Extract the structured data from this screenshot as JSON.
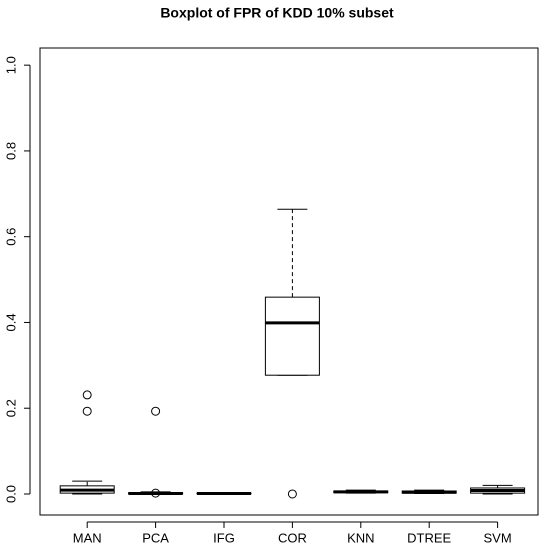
{
  "chart_data": {
    "type": "boxplot",
    "title": "Boxplot of FPR of KDD 10% subset",
    "categories": [
      "MAN",
      "PCA",
      "IFG",
      "COR",
      "KNN",
      "DTREE",
      "SVM"
    ],
    "boxes": [
      {
        "min": 0.0,
        "q1": 0.002,
        "median": 0.009,
        "q3": 0.019,
        "max": 0.03,
        "outliers": [
          0.231,
          0.193
        ]
      },
      {
        "min": 0.0,
        "q1": 0.0,
        "median": 0.001,
        "q3": 0.003,
        "max": 0.005,
        "outliers": [
          0.193,
          0.002
        ]
      },
      {
        "min": 0.0,
        "q1": 0.0005,
        "median": 0.001,
        "q3": 0.002,
        "max": 0.003,
        "outliers": []
      },
      {
        "min": 0.277,
        "q1": 0.277,
        "median": 0.399,
        "q3": 0.459,
        "max": 0.664,
        "outliers": [
          0.0
        ]
      },
      {
        "min": 0.002,
        "q1": 0.003,
        "median": 0.005,
        "q3": 0.007,
        "max": 0.009,
        "outliers": []
      },
      {
        "min": 0.001,
        "q1": 0.002,
        "median": 0.004,
        "q3": 0.007,
        "max": 0.009,
        "outliers": []
      },
      {
        "min": 0.0,
        "q1": 0.002,
        "median": 0.008,
        "q3": 0.014,
        "max": 0.02,
        "outliers": []
      }
    ],
    "color": "#ffffff",
    "line_color": "#000000",
    "ylim": [
      -0.049,
      1.04
    ],
    "yticks": [
      {
        "value": 0,
        "label": "0.0"
      },
      0.2,
      0.4,
      0.6,
      0.8,
      {
        "value": 1,
        "label": "1.0"
      }
    ]
  }
}
